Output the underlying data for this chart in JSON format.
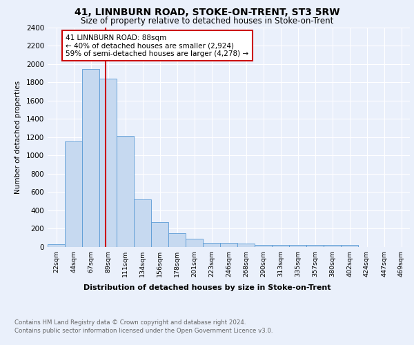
{
  "title": "41, LINNBURN ROAD, STOKE-ON-TRENT, ST3 5RW",
  "subtitle": "Size of property relative to detached houses in Stoke-on-Trent",
  "xlabel": "Distribution of detached houses by size in Stoke-on-Trent",
  "ylabel": "Number of detached properties",
  "bar_labels": [
    "22sqm",
    "44sqm",
    "67sqm",
    "89sqm",
    "111sqm",
    "134sqm",
    "156sqm",
    "178sqm",
    "201sqm",
    "223sqm",
    "246sqm",
    "268sqm",
    "290sqm",
    "313sqm",
    "335sqm",
    "357sqm",
    "380sqm",
    "402sqm",
    "424sqm",
    "447sqm",
    "469sqm"
  ],
  "bar_values": [
    30,
    1150,
    1950,
    1840,
    1215,
    515,
    265,
    150,
    85,
    45,
    40,
    35,
    20,
    22,
    18,
    18,
    18,
    20,
    0,
    0,
    0
  ],
  "bar_color": "#c6d9f0",
  "bar_edge_color": "#5a9bd5",
  "vline_color": "#cc0000",
  "annotation_text": "41 LINNBURN ROAD: 88sqm\n← 40% of detached houses are smaller (2,924)\n59% of semi-detached houses are larger (4,278) →",
  "annotation_box_color": "#ffffff",
  "annotation_box_edge": "#cc0000",
  "ylim": [
    0,
    2400
  ],
  "yticks": [
    0,
    200,
    400,
    600,
    800,
    1000,
    1200,
    1400,
    1600,
    1800,
    2000,
    2200,
    2400
  ],
  "footer_line1": "Contains HM Land Registry data © Crown copyright and database right 2024.",
  "footer_line2": "Contains public sector information licensed under the Open Government Licence v3.0.",
  "bg_color": "#eaf0fb",
  "plot_bg_color": "#eaf0fb"
}
